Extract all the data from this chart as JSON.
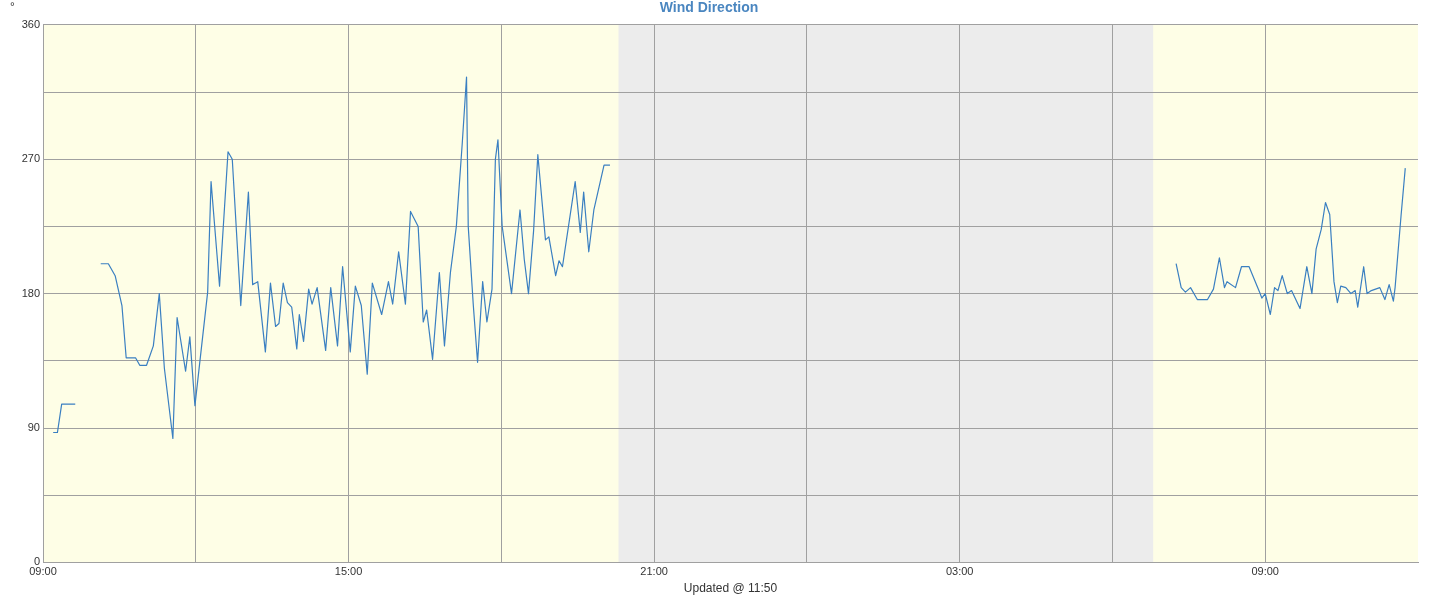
{
  "chart_data": {
    "type": "line",
    "title": "Wind Direction",
    "xlabel": "Updated @ 11:50",
    "ylabel": "°",
    "xlim": [
      "--01-01T09:00",
      "--01-02T12:00"
    ],
    "xticks": [
      {
        "value": "--01-01T09:00",
        "label": "09:00"
      },
      {
        "value": "--01-01T12:00",
        "label": null
      },
      {
        "value": "--01-01T15:00",
        "label": "15:00"
      },
      {
        "value": "--01-01T18:00",
        "label": null
      },
      {
        "value": "--01-01T21:00",
        "label": "21:00"
      },
      {
        "value": "--01-02T00:00",
        "label": null
      },
      {
        "value": "--01-02T03:00",
        "label": "03:00"
      },
      {
        "value": "--01-02T06:00",
        "label": null
      },
      {
        "value": "--01-02T09:00",
        "label": "09:00"
      }
    ],
    "ylim": [
      0,
      360
    ],
    "yticks": [
      0,
      {
        "value": 45,
        "label": null
      },
      90,
      {
        "value": 135,
        "label": null
      },
      180,
      {
        "value": 225,
        "label": null
      },
      270,
      {
        "value": 315,
        "label": null
      },
      360
    ],
    "grid": true,
    "legend": false,
    "marker": "none",
    "line_style": "solid",
    "bands": [
      {
        "axis": "x",
        "from": "--01-01T20:18",
        "to": "--01-02T06:48",
        "color": "#ececec"
      }
    ],
    "x": [
      "--01-01T09:12",
      "--01-01T09:17",
      "--01-01T09:22",
      "--01-01T09:38",
      "--01-01T09:48",
      "--01-01T10:08",
      "--01-01T10:17",
      "--01-01T10:25",
      "--01-01T10:33",
      "--01-01T10:38",
      "--01-01T10:49",
      "--01-01T10:54",
      "--01-01T11:02",
      "--01-01T11:10",
      "--01-01T11:17",
      "--01-01T11:23",
      "--01-01T11:33",
      "--01-01T11:38",
      "--01-01T11:48",
      "--01-01T11:53",
      "--01-01T11:59",
      "--01-01T12:14",
      "--01-01T12:18",
      "--01-01T12:28",
      "--01-01T12:38",
      "--01-01T12:43",
      "--01-01T12:53",
      "--01-01T13:02",
      "--01-01T13:07",
      "--01-01T13:13",
      "--01-01T13:22",
      "--01-01T13:28",
      "--01-01T13:34",
      "--01-01T13:38",
      "--01-01T13:43",
      "--01-01T13:48",
      "--01-01T13:53",
      "--01-01T13:59",
      "--01-01T14:02",
      "--01-01T14:07",
      "--01-01T14:13",
      "--01-01T14:17",
      "--01-01T14:23",
      "--01-01T14:33",
      "--01-01T14:39",
      "--01-01T14:47",
      "--01-01T14:53",
      "--01-01T15:02",
      "--01-01T15:08",
      "--01-01T15:15",
      "--01-01T15:22",
      "--01-01T15:28",
      "--01-01T15:39",
      "--01-01T15:47",
      "--01-01T15:52",
      "--01-01T15:59",
      "--01-01T16:07",
      "--01-01T16:13",
      "--01-01T16:22",
      "--01-01T16:28",
      "--01-01T16:32",
      "--01-01T16:39",
      "--01-01T16:47",
      "--01-01T16:53",
      "--01-01T17:00",
      "--01-01T17:07",
      "--01-01T17:14",
      "--01-01T17:19",
      "--01-01T17:21",
      "--01-01T17:27",
      "--01-01T17:32",
      "--01-01T17:38",
      "--01-01T17:43",
      "--01-01T17:49",
      "--01-01T17:53",
      "--01-01T17:56",
      "--01-01T18:01",
      "--01-01T18:12",
      "--01-01T18:22",
      "--01-01T18:27",
      "--01-01T18:32",
      "--01-01T18:38",
      "--01-01T18:43",
      "--01-01T18:52",
      "--01-01T18:56",
      "--01-01T19:04",
      "--01-01T19:08",
      "--01-01T19:12",
      "--01-01T19:27",
      "--01-01T19:33",
      "--01-01T19:37",
      "--01-01T19:43",
      "--01-01T19:49",
      "--01-01T20:01",
      "--01-01T20:08",
      "--01-02T01:00",
      "--01-02T07:15",
      "--01-02T07:21",
      "--01-02T07:26",
      "--01-02T07:32",
      "--01-02T07:40",
      "--01-02T07:52",
      "--01-02T07:59",
      "--01-02T08:06",
      "--01-02T08:12",
      "--01-02T08:15",
      "--01-02T08:25",
      "--01-02T08:32",
      "--01-02T08:41",
      "--01-02T08:54",
      "--01-02T08:56",
      "--01-02T09:00",
      "--01-02T09:06",
      "--01-02T09:11",
      "--01-02T09:15",
      "--01-02T09:20",
      "--01-02T09:26",
      "--01-02T09:31",
      "--01-02T09:41",
      "--01-02T09:49",
      "--01-02T09:55",
      "--01-02T10:00",
      "--01-02T10:06",
      "--01-02T10:11",
      "--01-02T10:16",
      "--01-02T10:21",
      "--01-02T10:25",
      "--01-02T10:29",
      "--01-02T10:35",
      "--01-02T10:41",
      "--01-02T10:46",
      "--01-02T10:49",
      "--01-02T10:56",
      "--01-02T11:00",
      "--01-02T11:05",
      "--01-02T11:15",
      "--01-02T11:21",
      "--01-02T11:26",
      "--01-02T11:31",
      "--01-02T11:33",
      "--01-02T11:40",
      "--01-02T11:45"
    ],
    "series": [
      {
        "color": "#3a7fc1",
        "values": [
          87,
          87,
          106,
          106,
          null,
          200,
          200,
          192,
          172,
          137,
          137,
          132,
          132,
          145,
          180,
          130,
          83,
          164,
          128,
          151,
          105,
          181,
          255,
          185,
          275,
          270,
          172,
          248,
          186,
          188,
          141,
          187,
          158,
          160,
          187,
          174,
          171,
          143,
          166,
          148,
          183,
          173,
          184,
          142,
          184,
          145,
          198,
          141,
          185,
          172,
          126,
          187,
          166,
          188,
          173,
          208,
          173,
          235,
          225,
          161,
          169,
          136,
          194,
          145,
          194,
          225,
          281,
          325,
          225,
          172,
          134,
          188,
          161,
          183,
          270,
          283,
          225,
          180,
          236,
          203,
          180,
          222,
          273,
          216,
          218,
          192,
          202,
          198,
          255,
          221,
          248,
          208,
          236,
          266,
          266,
          null,
          200,
          184,
          181,
          184,
          176,
          176,
          183,
          204,
          184,
          188,
          184,
          198,
          198,
          180,
          177,
          180,
          166,
          184,
          182,
          192,
          180,
          182,
          170,
          198,
          180,
          210,
          223,
          241,
          233,
          188,
          174,
          185,
          184,
          180,
          182,
          171,
          198,
          180,
          182,
          184,
          176,
          186,
          175,
          184,
          232,
          264
        ]
      }
    ]
  }
}
